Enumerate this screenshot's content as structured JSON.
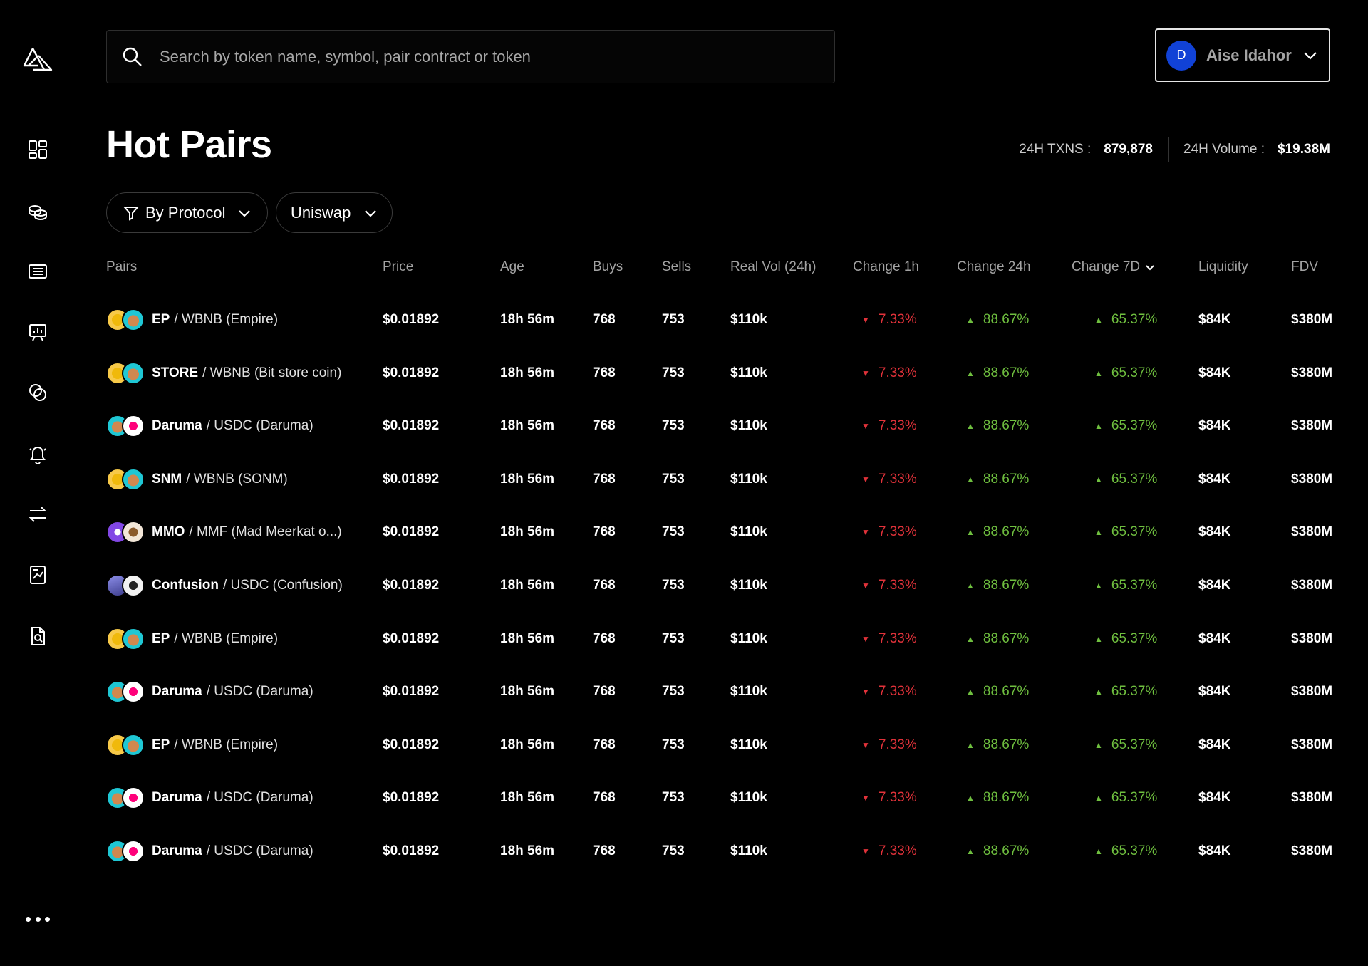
{
  "search": {
    "placeholder": "Search by token name, symbol, pair contract or token"
  },
  "user": {
    "initial": "D",
    "name": "Aise Idahor"
  },
  "page": {
    "title": "Hot Pairs"
  },
  "stats": {
    "txns_label": "24H TXNS :",
    "txns_value": "879,878",
    "volume_label": "24H Volume :",
    "volume_value": "$19.38M"
  },
  "filters": {
    "protocol_label": "By Protocol",
    "dex_label": "Uniswap"
  },
  "colors": {
    "accent_negative": "#e2323a",
    "accent_positive": "#6fbf3f",
    "avatar": "#1142d6"
  },
  "sidebar": {
    "items": [
      {
        "name": "dashboard-icon"
      },
      {
        "name": "coins-icon"
      },
      {
        "name": "news-icon"
      },
      {
        "name": "presentation-icon"
      },
      {
        "name": "overlap-icon"
      },
      {
        "name": "bell-icon"
      },
      {
        "name": "swap-arrows-icon"
      },
      {
        "name": "chart-file-icon"
      },
      {
        "name": "document-search-icon"
      }
    ]
  },
  "table": {
    "headers": {
      "pairs": "Pairs",
      "price": "Price",
      "age": "Age",
      "buys": "Buys",
      "sells": "Sells",
      "vol": "Real Vol (24h)",
      "ch1h": "Change 1h",
      "ch24h": "Change 24h",
      "ch7d": "Change 7D",
      "liq": "Liquidity",
      "fdv": "FDV"
    },
    "rows": [
      {
        "base": "EP",
        "rest": "/ WBNB (Empire)",
        "coins": [
          "bnb",
          "bunny"
        ],
        "price": "$0.01892",
        "age": "18h 56m",
        "buys": "768",
        "sells": "753",
        "vol": "$110k",
        "ch1h": "7.33%",
        "ch24h": "88.67%",
        "ch7d": "65.37%",
        "liq": "$84K",
        "fdv": "$380M"
      },
      {
        "base": "STORE",
        "rest": "/ WBNB (Bit store coin)",
        "coins": [
          "bnb",
          "bunny"
        ],
        "price": "$0.01892",
        "age": "18h 56m",
        "buys": "768",
        "sells": "753",
        "vol": "$110k",
        "ch1h": "7.33%",
        "ch24h": "88.67%",
        "ch7d": "65.37%",
        "liq": "$84K",
        "fdv": "$380M"
      },
      {
        "base": "Daruma",
        "rest": "/ USDC (Daruma)",
        "coins": [
          "bunny",
          "unicorn"
        ],
        "price": "$0.01892",
        "age": "18h 56m",
        "buys": "768",
        "sells": "753",
        "vol": "$110k",
        "ch1h": "7.33%",
        "ch24h": "88.67%",
        "ch7d": "65.37%",
        "liq": "$84K",
        "fdv": "$380M"
      },
      {
        "base": "SNM",
        "rest": "/ WBNB (SONM)",
        "coins": [
          "bnb",
          "bunny"
        ],
        "price": "$0.01892",
        "age": "18h 56m",
        "buys": "768",
        "sells": "753",
        "vol": "$110k",
        "ch1h": "7.33%",
        "ch24h": "88.67%",
        "ch7d": "65.37%",
        "liq": "$84K",
        "fdv": "$380M"
      },
      {
        "base": "MMO",
        "rest": "/ MMF (Mad Meerkat o...)",
        "coins": [
          "polygon",
          "meerkat"
        ],
        "price": "$0.01892",
        "age": "18h 56m",
        "buys": "768",
        "sells": "753",
        "vol": "$110k",
        "ch1h": "7.33%",
        "ch24h": "88.67%",
        "ch7d": "65.37%",
        "liq": "$84K",
        "fdv": "$380M"
      },
      {
        "base": "Confusion",
        "rest": "/ USDC (Confusion)",
        "coins": [
          "eth",
          "wolf"
        ],
        "price": "$0.01892",
        "age": "18h 56m",
        "buys": "768",
        "sells": "753",
        "vol": "$110k",
        "ch1h": "7.33%",
        "ch24h": "88.67%",
        "ch7d": "65.37%",
        "liq": "$84K",
        "fdv": "$380M"
      },
      {
        "base": "EP",
        "rest": "/ WBNB (Empire)",
        "coins": [
          "bnb",
          "bunny"
        ],
        "price": "$0.01892",
        "age": "18h 56m",
        "buys": "768",
        "sells": "753",
        "vol": "$110k",
        "ch1h": "7.33%",
        "ch24h": "88.67%",
        "ch7d": "65.37%",
        "liq": "$84K",
        "fdv": "$380M"
      },
      {
        "base": "Daruma",
        "rest": "/ USDC (Daruma)",
        "coins": [
          "bunny",
          "unicorn"
        ],
        "price": "$0.01892",
        "age": "18h 56m",
        "buys": "768",
        "sells": "753",
        "vol": "$110k",
        "ch1h": "7.33%",
        "ch24h": "88.67%",
        "ch7d": "65.37%",
        "liq": "$84K",
        "fdv": "$380M"
      },
      {
        "base": "EP",
        "rest": "/ WBNB (Empire)",
        "coins": [
          "bnb",
          "bunny"
        ],
        "price": "$0.01892",
        "age": "18h 56m",
        "buys": "768",
        "sells": "753",
        "vol": "$110k",
        "ch1h": "7.33%",
        "ch24h": "88.67%",
        "ch7d": "65.37%",
        "liq": "$84K",
        "fdv": "$380M"
      },
      {
        "base": "Daruma",
        "rest": "/ USDC (Daruma)",
        "coins": [
          "bunny",
          "unicorn"
        ],
        "price": "$0.01892",
        "age": "18h 56m",
        "buys": "768",
        "sells": "753",
        "vol": "$110k",
        "ch1h": "7.33%",
        "ch24h": "88.67%",
        "ch7d": "65.37%",
        "liq": "$84K",
        "fdv": "$380M"
      },
      {
        "base": "Daruma",
        "rest": "/ USDC (Daruma)",
        "coins": [
          "bunny",
          "unicorn"
        ],
        "price": "$0.01892",
        "age": "18h 56m",
        "buys": "768",
        "sells": "753",
        "vol": "$110k",
        "ch1h": "7.33%",
        "ch24h": "88.67%",
        "ch7d": "65.37%",
        "liq": "$84K",
        "fdv": "$380M"
      }
    ]
  }
}
